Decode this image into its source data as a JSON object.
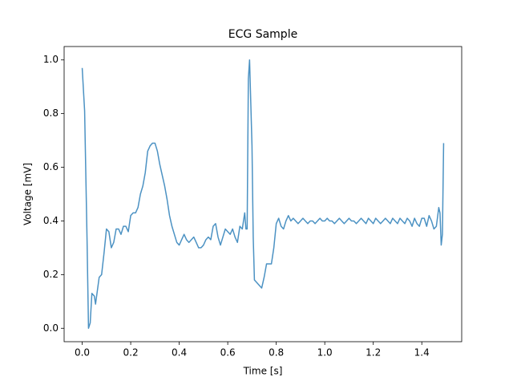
{
  "chart_data": {
    "type": "line",
    "title": "ECG Sample",
    "x_label": "Time [s]",
    "y_label": "Voltage [mV]",
    "color": "#4c92c3",
    "x": [
      0.0,
      0.01,
      0.02,
      0.026,
      0.033,
      0.04,
      0.05,
      0.055,
      0.07,
      0.08,
      0.09,
      0.1,
      0.11,
      0.12,
      0.13,
      0.14,
      0.15,
      0.16,
      0.17,
      0.18,
      0.19,
      0.2,
      0.21,
      0.22,
      0.23,
      0.24,
      0.25,
      0.26,
      0.27,
      0.28,
      0.29,
      0.3,
      0.31,
      0.32,
      0.33,
      0.34,
      0.35,
      0.36,
      0.37,
      0.38,
      0.39,
      0.4,
      0.41,
      0.42,
      0.43,
      0.44,
      0.45,
      0.46,
      0.47,
      0.48,
      0.49,
      0.5,
      0.51,
      0.52,
      0.53,
      0.54,
      0.55,
      0.56,
      0.57,
      0.58,
      0.59,
      0.6,
      0.61,
      0.62,
      0.63,
      0.64,
      0.65,
      0.66,
      0.67,
      0.675,
      0.68,
      0.685,
      0.69,
      0.7,
      0.705,
      0.71,
      0.72,
      0.73,
      0.74,
      0.75,
      0.76,
      0.77,
      0.78,
      0.79,
      0.8,
      0.81,
      0.82,
      0.83,
      0.84,
      0.85,
      0.86,
      0.87,
      0.88,
      0.89,
      0.9,
      0.91,
      0.92,
      0.93,
      0.94,
      0.95,
      0.96,
      0.97,
      0.98,
      0.99,
      1.0,
      1.01,
      1.02,
      1.03,
      1.04,
      1.05,
      1.06,
      1.07,
      1.08,
      1.09,
      1.1,
      1.11,
      1.12,
      1.13,
      1.14,
      1.15,
      1.16,
      1.17,
      1.18,
      1.19,
      1.2,
      1.21,
      1.22,
      1.23,
      1.24,
      1.25,
      1.26,
      1.27,
      1.28,
      1.29,
      1.3,
      1.31,
      1.32,
      1.33,
      1.34,
      1.35,
      1.36,
      1.37,
      1.38,
      1.39,
      1.4,
      1.41,
      1.42,
      1.43,
      1.44,
      1.45,
      1.46,
      1.47,
      1.475,
      1.48,
      1.485,
      1.49
    ],
    "values": [
      0.97,
      0.81,
      0.33,
      0.0,
      0.02,
      0.13,
      0.12,
      0.09,
      0.19,
      0.2,
      0.28,
      0.37,
      0.36,
      0.3,
      0.32,
      0.37,
      0.37,
      0.35,
      0.38,
      0.38,
      0.36,
      0.42,
      0.43,
      0.43,
      0.45,
      0.5,
      0.53,
      0.58,
      0.66,
      0.68,
      0.69,
      0.69,
      0.66,
      0.61,
      0.57,
      0.53,
      0.48,
      0.42,
      0.38,
      0.35,
      0.32,
      0.31,
      0.33,
      0.35,
      0.33,
      0.32,
      0.33,
      0.34,
      0.32,
      0.3,
      0.3,
      0.31,
      0.33,
      0.34,
      0.33,
      0.38,
      0.39,
      0.34,
      0.31,
      0.34,
      0.37,
      0.36,
      0.35,
      0.37,
      0.34,
      0.32,
      0.38,
      0.37,
      0.43,
      0.37,
      0.37,
      0.93,
      1.0,
      0.68,
      0.34,
      0.18,
      0.17,
      0.16,
      0.15,
      0.19,
      0.24,
      0.24,
      0.24,
      0.3,
      0.39,
      0.41,
      0.38,
      0.37,
      0.4,
      0.42,
      0.4,
      0.41,
      0.4,
      0.39,
      0.4,
      0.41,
      0.4,
      0.39,
      0.4,
      0.4,
      0.39,
      0.4,
      0.41,
      0.4,
      0.4,
      0.41,
      0.4,
      0.4,
      0.39,
      0.4,
      0.41,
      0.4,
      0.39,
      0.4,
      0.41,
      0.4,
      0.4,
      0.39,
      0.4,
      0.41,
      0.4,
      0.39,
      0.41,
      0.4,
      0.39,
      0.41,
      0.4,
      0.39,
      0.4,
      0.41,
      0.4,
      0.39,
      0.41,
      0.4,
      0.39,
      0.41,
      0.4,
      0.39,
      0.41,
      0.4,
      0.38,
      0.41,
      0.39,
      0.38,
      0.41,
      0.41,
      0.38,
      0.42,
      0.4,
      0.37,
      0.38,
      0.45,
      0.43,
      0.31,
      0.35,
      0.69
    ],
    "xlim": [
      -0.0745,
      1.5645
    ],
    "ylim": [
      -0.05,
      1.05
    ],
    "xticks": [
      {
        "value": 0.0,
        "label": "0.0"
      },
      {
        "value": 0.2,
        "label": "0.2"
      },
      {
        "value": 0.4,
        "label": "0.4"
      },
      {
        "value": 0.6,
        "label": "0.6"
      },
      {
        "value": 0.8,
        "label": "0.8"
      },
      {
        "value": 1.0,
        "label": "1.0"
      },
      {
        "value": 1.2,
        "label": "1.2"
      },
      {
        "value": 1.4,
        "label": "1.4"
      }
    ],
    "yticks": [
      {
        "value": 0.0,
        "label": "0.0"
      },
      {
        "value": 0.2,
        "label": "0.2"
      },
      {
        "value": 0.4,
        "label": "0.4"
      },
      {
        "value": 0.6,
        "label": "0.6"
      },
      {
        "value": 0.8,
        "label": "0.8"
      },
      {
        "value": 1.0,
        "label": "1.0"
      }
    ],
    "grid": false
  }
}
